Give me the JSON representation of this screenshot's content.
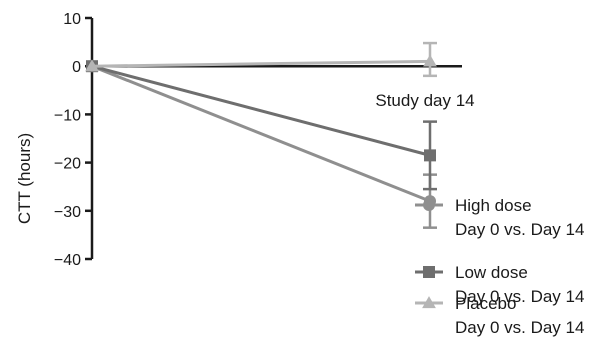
{
  "chart_data": {
    "type": "line",
    "title": "",
    "xlabel": "",
    "ylabel": "CTT (hours)",
    "ylim": [
      -40,
      10
    ],
    "yticks": [
      10,
      0,
      -10,
      -20,
      -30,
      -40
    ],
    "ytick_labels": [
      "10",
      "0",
      "−10",
      "−20",
      "−30",
      "−40"
    ],
    "x_annotation": "Study day 14",
    "x": [
      0,
      14
    ],
    "grid": false,
    "legend_position": "right",
    "series": [
      {
        "name": "High dose",
        "subtitle": "Day 0 vs. Day 14",
        "values": [
          0,
          -28
        ],
        "error_low": [
          null,
          -33.5
        ],
        "error_high": [
          null,
          -22.5
        ],
        "color": "#8f8f8f",
        "marker": "circle"
      },
      {
        "name": "Low dose",
        "subtitle": "Day 0 vs. Day 14",
        "values": [
          0,
          -18.5
        ],
        "error_low": [
          null,
          -25.5
        ],
        "error_high": [
          null,
          -11.5
        ],
        "color": "#6e6e6e",
        "marker": "square"
      },
      {
        "name": "Placebo",
        "subtitle": "Day 0 vs. Day 14",
        "values": [
          0,
          1
        ],
        "error_low": [
          null,
          -2
        ],
        "error_high": [
          null,
          4.8
        ],
        "color": "#b5b5b5",
        "marker": "triangle"
      }
    ]
  }
}
